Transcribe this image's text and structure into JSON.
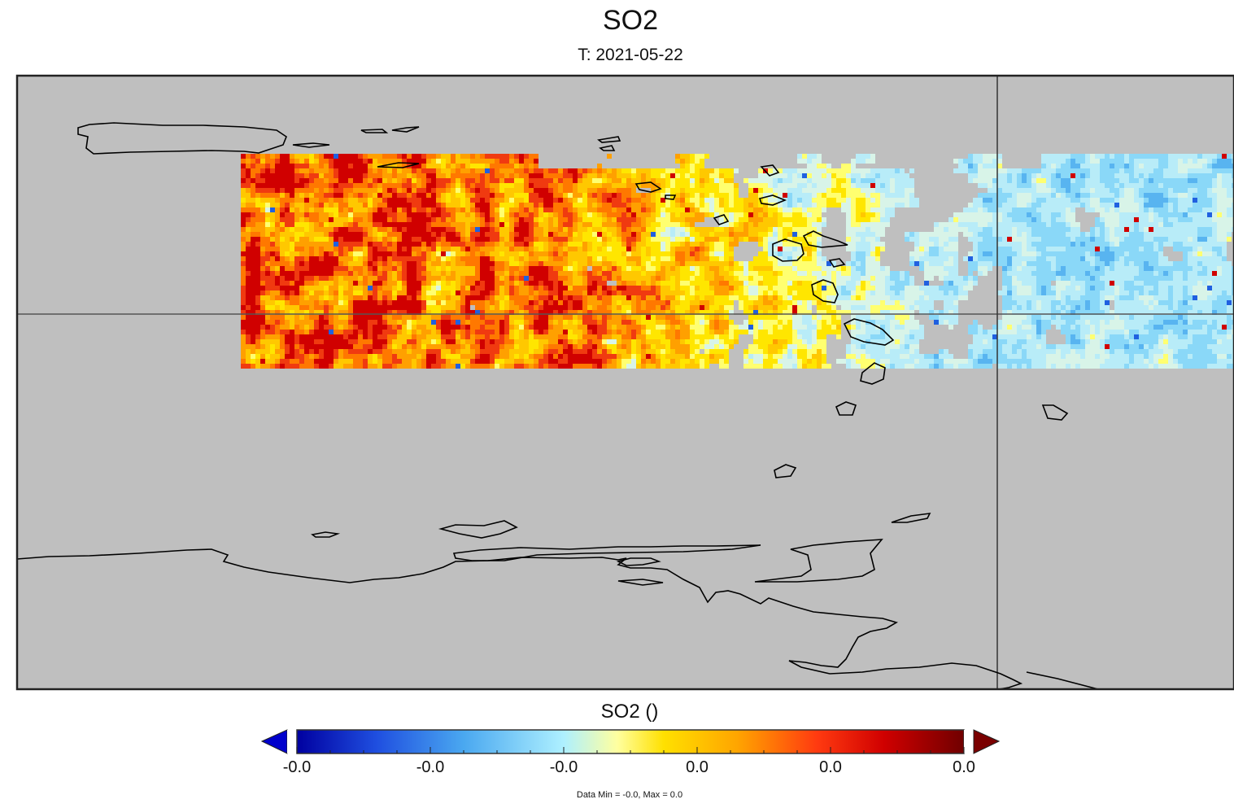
{
  "title": "SO2",
  "subtitle": "T: 2021-05-22",
  "colorbar": {
    "label": "SO2 ()",
    "tick_labels": [
      "-0.0",
      "-0.0",
      "-0.0",
      "0.0",
      "0.0",
      "0.0"
    ],
    "data_range_note": "Data Min = -0.0, Max = 0.0",
    "colors": [
      "#00008b",
      "#1f4fe0",
      "#4aa8f0",
      "#9fe8ff",
      "#ffff66",
      "#ffc000",
      "#ff7a00",
      "#e81010",
      "#800000"
    ]
  },
  "colors": {
    "no_data": "#bfbfbf",
    "coastline": "#000000",
    "gridline": "#555555"
  },
  "chart_data": {
    "type": "heatmap",
    "variable": "SO2",
    "date": "2021-05-22",
    "value_range": [
      -0.0,
      0.0
    ],
    "swath_region": "satellite swath across northern part of map, partially masked (gray = no data)",
    "gridlines": true
  }
}
